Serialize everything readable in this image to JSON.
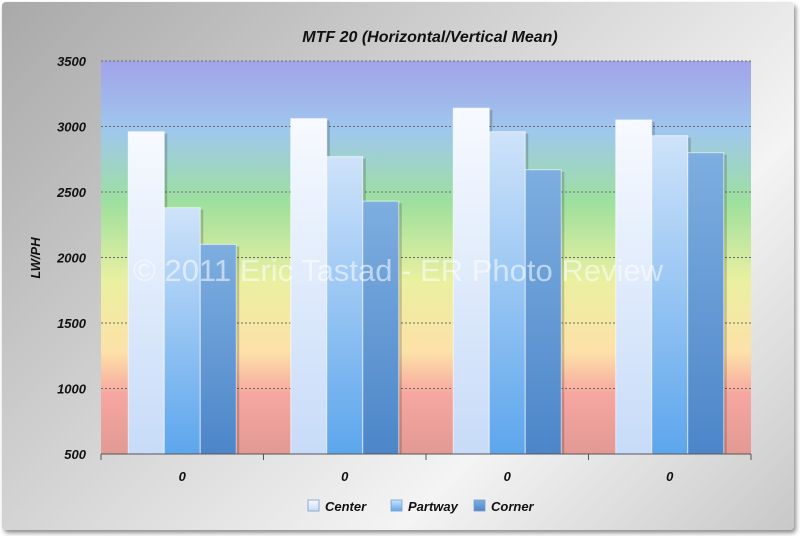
{
  "chart_data": {
    "type": "bar",
    "title": "MTF 20 (Horizontal/Vertical Mean)",
    "xlabel": "",
    "ylabel": "LW/PH",
    "categories": [
      "0",
      "0",
      "0",
      "0"
    ],
    "series": [
      {
        "name": "Center",
        "values": [
          2960,
          3060,
          3140,
          3050
        ]
      },
      {
        "name": "Partway",
        "values": [
          2380,
          2770,
          2960,
          2930
        ]
      },
      {
        "name": "Corner",
        "values": [
          2100,
          2430,
          2670,
          2800
        ]
      }
    ],
    "ylim": [
      500,
      3500
    ],
    "yticks": [
      500,
      1000,
      1500,
      2000,
      2500,
      3000,
      3500
    ],
    "grid": "horizontal dashed",
    "legend": "bottom",
    "colors": {
      "Center": "#dde8fb",
      "Partway": "#8fc0f0",
      "Corner": "#5f98d6"
    },
    "watermark": "© 2011 Eric Tastad - ER Photo Review"
  }
}
